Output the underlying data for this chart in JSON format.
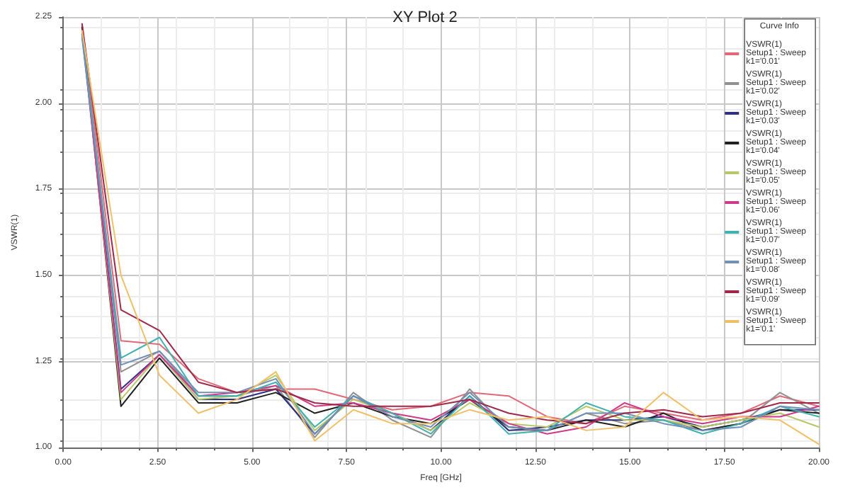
{
  "chart_data": {
    "type": "line",
    "title": "XY Plot 2",
    "xlabel": "Freq [GHz]",
    "ylabel": "VSWR(1)",
    "legend_title": "Curve Info",
    "x": [
      0.5,
      1.53,
      2.55,
      3.58,
      4.6,
      5.63,
      6.66,
      7.68,
      8.71,
      9.73,
      10.76,
      11.79,
      12.81,
      13.84,
      14.86,
      15.89,
      16.92,
      17.94,
      18.97,
      20
    ],
    "series": [
      {
        "name": "VSWR(1)\nSetup1 : Sweep\nk1='0.01'",
        "color": "#e06878",
        "values": [
          2.23,
          1.31,
          1.3,
          1.2,
          1.16,
          1.17,
          1.17,
          1.14,
          1.11,
          1.12,
          1.16,
          1.15,
          1.09,
          1.07,
          1.12,
          1.1,
          1.08,
          1.1,
          1.15,
          1.12
        ]
      },
      {
        "name": "VSWR(1)\nSetup1 : Sweep\nk1='0.02'",
        "color": "#909090",
        "values": [
          2.22,
          1.22,
          1.28,
          1.15,
          1.15,
          1.18,
          1.03,
          1.16,
          1.08,
          1.03,
          1.17,
          1.05,
          1.05,
          1.1,
          1.07,
          1.08,
          1.05,
          1.07,
          1.16,
          1.1
        ]
      },
      {
        "name": "VSWR(1)\nSetup1 : Sweep\nk1='0.03'",
        "color": "#303080",
        "values": [
          2.21,
          1.17,
          1.27,
          1.14,
          1.14,
          1.17,
          1.04,
          1.15,
          1.1,
          1.05,
          1.15,
          1.05,
          1.06,
          1.08,
          1.08,
          1.09,
          1.06,
          1.08,
          1.11,
          1.11
        ]
      },
      {
        "name": "VSWR(1)\nSetup1 : Sweep\nk1='0.04'",
        "color": "#202020",
        "values": [
          2.22,
          1.12,
          1.26,
          1.13,
          1.13,
          1.16,
          1.1,
          1.13,
          1.09,
          1.07,
          1.14,
          1.06,
          1.05,
          1.08,
          1.06,
          1.1,
          1.05,
          1.07,
          1.11,
          1.1
        ]
      },
      {
        "name": "VSWR(1)\nSetup1 : Sweep\nk1='0.05'",
        "color": "#b8c868",
        "values": [
          2.21,
          1.14,
          1.27,
          1.14,
          1.15,
          1.21,
          1.05,
          1.14,
          1.1,
          1.05,
          1.13,
          1.07,
          1.06,
          1.12,
          1.08,
          1.08,
          1.06,
          1.08,
          1.1,
          1.06
        ]
      },
      {
        "name": "VSWR(1)\nSetup1 : Sweep\nk1='0.06'",
        "color": "#d03888",
        "values": [
          2.2,
          1.16,
          1.27,
          1.15,
          1.16,
          1.18,
          1.12,
          1.13,
          1.1,
          1.08,
          1.14,
          1.07,
          1.04,
          1.06,
          1.13,
          1.09,
          1.07,
          1.09,
          1.09,
          1.12
        ]
      },
      {
        "name": "VSWR(1)\nSetup1 : Sweep\nk1='0.07'",
        "color": "#40b0b0",
        "values": [
          2.2,
          1.26,
          1.32,
          1.15,
          1.15,
          1.19,
          1.06,
          1.15,
          1.1,
          1.04,
          1.15,
          1.04,
          1.05,
          1.13,
          1.09,
          1.08,
          1.04,
          1.07,
          1.12,
          1.09
        ]
      },
      {
        "name": "VSWR(1)\nSetup1 : Sweep\nk1='0.08'",
        "color": "#7090b8",
        "values": [
          2.19,
          1.24,
          1.28,
          1.16,
          1.16,
          1.2,
          1.04,
          1.15,
          1.09,
          1.06,
          1.16,
          1.06,
          1.05,
          1.1,
          1.1,
          1.07,
          1.05,
          1.06,
          1.12,
          1.11
        ]
      },
      {
        "name": "VSWR(1)\nSetup1 : Sweep\nk1='0.09'",
        "color": "#a02848",
        "values": [
          2.23,
          1.4,
          1.34,
          1.19,
          1.16,
          1.17,
          1.13,
          1.12,
          1.12,
          1.12,
          1.14,
          1.1,
          1.08,
          1.07,
          1.1,
          1.11,
          1.09,
          1.1,
          1.13,
          1.13
        ]
      },
      {
        "name": "VSWR(1)\nSetup1 : Sweep\nk1='0.1'",
        "color": "#f0c068",
        "values": [
          2.21,
          1.5,
          1.21,
          1.1,
          1.14,
          1.22,
          1.02,
          1.11,
          1.07,
          1.07,
          1.11,
          1.08,
          1.09,
          1.05,
          1.06,
          1.16,
          1.08,
          1.09,
          1.08,
          1.01
        ]
      }
    ],
    "xlim": [
      0,
      20
    ],
    "xticks": [
      {
        "value": 0,
        "label": "0.00"
      },
      {
        "value": 2.5,
        "label": "2.50"
      },
      {
        "value": 5,
        "label": "5.00"
      },
      {
        "value": 7.5,
        "label": "7.50"
      },
      {
        "value": 10,
        "label": "10.00"
      },
      {
        "value": 12.5,
        "label": "12.50"
      },
      {
        "value": 15,
        "label": "15.00"
      },
      {
        "value": 17.5,
        "label": "17.50"
      },
      {
        "value": 20,
        "label": "20.00"
      }
    ],
    "ylim": [
      1,
      2.25
    ],
    "yticks": [
      {
        "value": 1,
        "label": "1.00"
      },
      {
        "value": 1.25,
        "label": "1.25"
      },
      {
        "value": 1.5,
        "label": "1.50"
      },
      {
        "value": 1.75,
        "label": "1.75"
      },
      {
        "value": 2,
        "label": "2.00"
      },
      {
        "value": 2.25,
        "label": "2.25"
      }
    ],
    "grid": true,
    "legend": "top right",
    "marker": "none",
    "line_style": "solid"
  }
}
